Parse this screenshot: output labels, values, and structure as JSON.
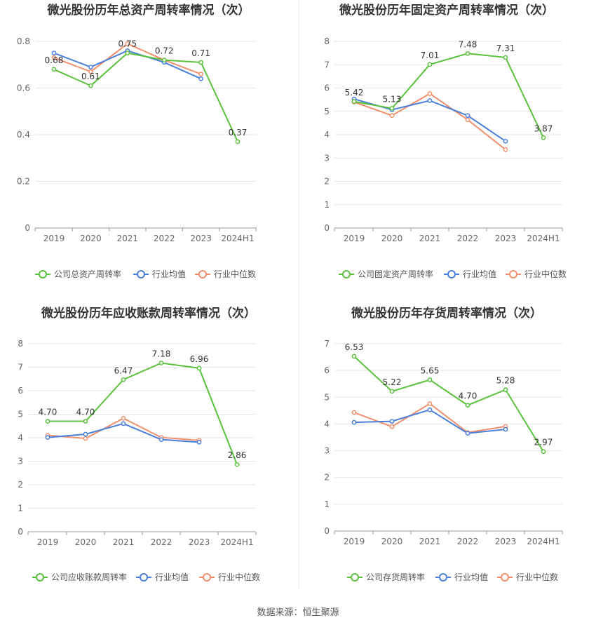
{
  "chart_data": [
    {
      "type": "line",
      "title": "微光股份历年总资产周转率情况（次）",
      "categories": [
        "2019",
        "2020",
        "2021",
        "2022",
        "2023",
        "2024H1"
      ],
      "ylim": [
        0,
        0.8
      ],
      "yticks": [
        "0",
        "0.2",
        "0.4",
        "0.6",
        "0.8"
      ],
      "grid": true,
      "legend_position": "bottom",
      "series": [
        {
          "name": "公司总资产周转率",
          "color": "#5ac23c",
          "values": [
            0.68,
            0.61,
            0.75,
            0.72,
            0.71,
            0.37
          ],
          "labels": [
            "0.68",
            "0.61",
            "0.75",
            "0.72",
            "0.71",
            "0.37"
          ]
        },
        {
          "name": "行业均值",
          "color": "#4a7fdc",
          "values": [
            0.75,
            0.69,
            0.76,
            0.71,
            0.64,
            null
          ]
        },
        {
          "name": "行业中位数",
          "color": "#f0906e",
          "values": [
            0.73,
            0.67,
            0.79,
            0.72,
            0.66,
            null
          ]
        }
      ]
    },
    {
      "type": "line",
      "title": "微光股份历年固定资产周转率情况（次）",
      "categories": [
        "2019",
        "2020",
        "2021",
        "2022",
        "2023",
        "2024H1"
      ],
      "ylim": [
        0,
        8
      ],
      "yticks": [
        "0",
        "1",
        "2",
        "3",
        "4",
        "5",
        "6",
        "7",
        "8"
      ],
      "grid": true,
      "legend_position": "bottom",
      "series": [
        {
          "name": "公司固定资产周转率",
          "color": "#5ac23c",
          "values": [
            5.42,
            5.13,
            7.01,
            7.48,
            7.31,
            3.87
          ],
          "labels": [
            "5.42",
            "5.13",
            "7.01",
            "7.48",
            "7.31",
            "3.87"
          ]
        },
        {
          "name": "行业均值",
          "color": "#4a7fdc",
          "values": [
            5.53,
            5.07,
            5.46,
            4.82,
            3.72,
            null
          ]
        },
        {
          "name": "行业中位数",
          "color": "#f0906e",
          "values": [
            5.4,
            4.82,
            5.76,
            4.64,
            3.36,
            null
          ]
        }
      ]
    },
    {
      "type": "line",
      "title": "微光股份历年应收账款周转率情况（次）",
      "categories": [
        "2019",
        "2020",
        "2021",
        "2022",
        "2023",
        "2024H1"
      ],
      "ylim": [
        0,
        8
      ],
      "yticks": [
        "0",
        "1",
        "2",
        "3",
        "4",
        "5",
        "6",
        "7",
        "8"
      ],
      "grid": true,
      "legend_position": "bottom",
      "series": [
        {
          "name": "公司应收账款周转率",
          "color": "#5ac23c",
          "values": [
            4.7,
            4.7,
            6.47,
            7.18,
            6.96,
            2.86
          ],
          "labels": [
            "4.70",
            "4.70",
            "6.47",
            "7.18",
            "6.96",
            "2.86"
          ]
        },
        {
          "name": "行业均值",
          "color": "#4a7fdc",
          "values": [
            4.01,
            4.15,
            4.6,
            3.92,
            3.81,
            null
          ]
        },
        {
          "name": "行业中位数",
          "color": "#f0906e",
          "values": [
            4.1,
            3.97,
            4.83,
            4.01,
            3.89,
            null
          ]
        }
      ]
    },
    {
      "type": "line",
      "title": "微光股份历年存货周转率情况（次）",
      "categories": [
        "2019",
        "2020",
        "2021",
        "2022",
        "2023",
        "2024H1"
      ],
      "ylim": [
        0,
        7
      ],
      "yticks": [
        "0",
        "1",
        "2",
        "3",
        "4",
        "5",
        "6",
        "7"
      ],
      "grid": true,
      "legend_position": "bottom",
      "series": [
        {
          "name": "公司存货周转率",
          "color": "#5ac23c",
          "values": [
            6.53,
            5.22,
            5.65,
            4.7,
            5.28,
            2.97
          ],
          "labels": [
            "6.53",
            "5.22",
            "5.65",
            "4.70",
            "5.28",
            "2.97"
          ]
        },
        {
          "name": "行业均值",
          "color": "#4a7fdc",
          "values": [
            4.06,
            4.1,
            4.53,
            3.65,
            3.8,
            null
          ]
        },
        {
          "name": "行业中位数",
          "color": "#f0906e",
          "values": [
            4.43,
            3.9,
            4.76,
            3.68,
            3.91,
            null
          ]
        }
      ]
    }
  ],
  "footer": {
    "source": "数据来源：恒生聚源"
  }
}
